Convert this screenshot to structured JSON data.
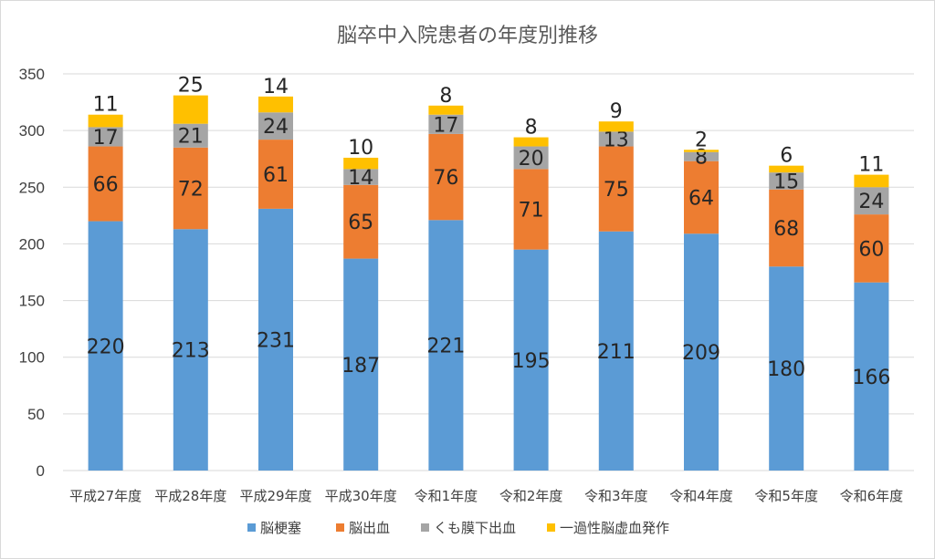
{
  "chart_data": {
    "type": "bar",
    "stacked": true,
    "title": "脳卒中入院患者の年度別推移",
    "xlabel": "",
    "ylabel": "",
    "ylim": [
      0,
      350
    ],
    "yticks": [
      0,
      50,
      100,
      150,
      200,
      250,
      300,
      350
    ],
    "grid": true,
    "legend_position": "bottom",
    "categories": [
      "平成27年度",
      "平成28年度",
      "平成29年度",
      "平成30年度",
      "令和1年度",
      "令和2年度",
      "令和3年度",
      "令和4年度",
      "令和5年度",
      "令和6年度"
    ],
    "series": [
      {
        "name": "脳梗塞",
        "color": "#5b9bd5",
        "values": [
          220,
          213,
          231,
          187,
          221,
          195,
          211,
          209,
          180,
          166
        ]
      },
      {
        "name": "脳出血",
        "color": "#ed7d31",
        "values": [
          66,
          72,
          61,
          65,
          76,
          71,
          75,
          64,
          68,
          60
        ]
      },
      {
        "name": "くも膜下出血",
        "color": "#a5a5a5",
        "values": [
          17,
          21,
          24,
          14,
          17,
          20,
          13,
          8,
          15,
          24
        ]
      },
      {
        "name": "一過性脳虚血発作",
        "color": "#ffc000",
        "values": [
          11,
          25,
          14,
          10,
          8,
          8,
          9,
          2,
          6,
          11
        ]
      }
    ]
  }
}
